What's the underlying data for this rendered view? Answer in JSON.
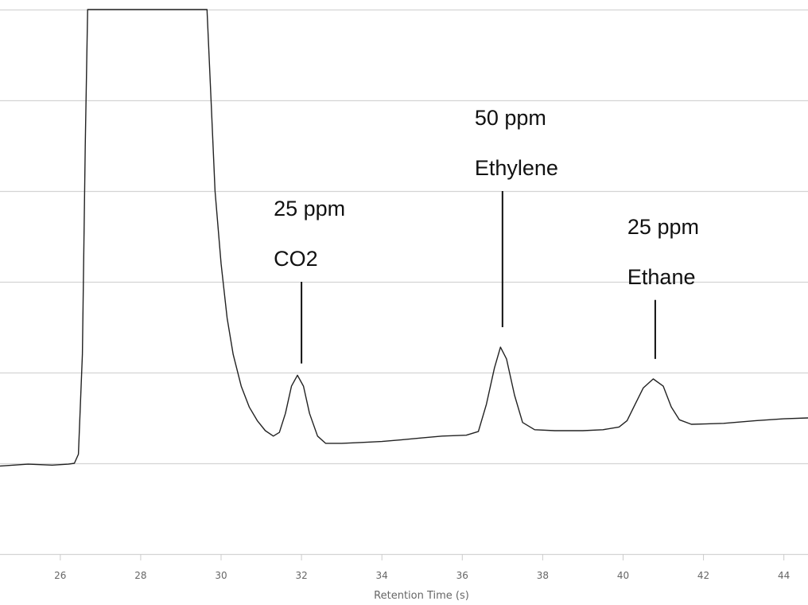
{
  "chart_data": {
    "type": "line",
    "title": "",
    "xlabel": "Retention Time (s)",
    "ylabel": "",
    "xlim": [
      24.5,
      44.6
    ],
    "ylim": [
      -1.0,
      5.0
    ],
    "x_ticks": [
      26,
      28,
      30,
      32,
      34,
      36,
      38,
      40,
      42,
      44
    ],
    "y_gridlines": [
      -1,
      0,
      1,
      2,
      3,
      4,
      5
    ],
    "grid": "horizontal",
    "legend": "none",
    "colors": {
      "line": "#222222",
      "grid": "#d4d4d4",
      "axis_text": "#666666"
    },
    "series": [
      {
        "values": [
          [
            24.5,
            -0.03
          ],
          [
            25.2,
            -0.01
          ],
          [
            25.8,
            -0.02
          ],
          [
            26.2,
            -0.01
          ],
          [
            26.35,
            0.0
          ],
          [
            26.45,
            0.1
          ],
          [
            26.55,
            1.2
          ],
          [
            26.62,
            3.5
          ],
          [
            26.68,
            5.0
          ],
          [
            29.65,
            5.0
          ],
          [
            29.75,
            4.0
          ],
          [
            29.85,
            3.0
          ],
          [
            30.0,
            2.2
          ],
          [
            30.15,
            1.6
          ],
          [
            30.3,
            1.2
          ],
          [
            30.5,
            0.85
          ],
          [
            30.7,
            0.62
          ],
          [
            30.9,
            0.47
          ],
          [
            31.1,
            0.36
          ],
          [
            31.3,
            0.3
          ],
          [
            31.45,
            0.34
          ],
          [
            31.6,
            0.55
          ],
          [
            31.75,
            0.85
          ],
          [
            31.9,
            0.97
          ],
          [
            32.05,
            0.85
          ],
          [
            32.2,
            0.55
          ],
          [
            32.4,
            0.3
          ],
          [
            32.6,
            0.22
          ],
          [
            33.0,
            0.22
          ],
          [
            33.5,
            0.23
          ],
          [
            34.0,
            0.24
          ],
          [
            34.5,
            0.26
          ],
          [
            35.0,
            0.28
          ],
          [
            35.5,
            0.3
          ],
          [
            36.1,
            0.31
          ],
          [
            36.4,
            0.35
          ],
          [
            36.6,
            0.65
          ],
          [
            36.8,
            1.05
          ],
          [
            36.95,
            1.28
          ],
          [
            37.1,
            1.15
          ],
          [
            37.3,
            0.75
          ],
          [
            37.5,
            0.45
          ],
          [
            37.8,
            0.37
          ],
          [
            38.3,
            0.36
          ],
          [
            39.0,
            0.36
          ],
          [
            39.5,
            0.37
          ],
          [
            39.9,
            0.4
          ],
          [
            40.1,
            0.47
          ],
          [
            40.3,
            0.65
          ],
          [
            40.5,
            0.83
          ],
          [
            40.75,
            0.93
          ],
          [
            41.0,
            0.85
          ],
          [
            41.2,
            0.62
          ],
          [
            41.4,
            0.48
          ],
          [
            41.7,
            0.43
          ],
          [
            42.5,
            0.44
          ],
          [
            43.3,
            0.47
          ],
          [
            44.0,
            0.49
          ],
          [
            44.6,
            0.5
          ]
        ]
      }
    ],
    "annotations": [
      {
        "lines": [
          "25 ppm",
          "CO2"
        ],
        "x": 32.0,
        "line_top": 2.0,
        "line_bottom": 1.1
      },
      {
        "lines": [
          "50 ppm",
          "Ethylene"
        ],
        "x": 37.0,
        "line_top": 3.0,
        "line_bottom": 1.5
      },
      {
        "lines": [
          "25 ppm",
          "Ethane"
        ],
        "x": 40.8,
        "line_top": 1.8,
        "line_bottom": 1.15
      }
    ]
  }
}
